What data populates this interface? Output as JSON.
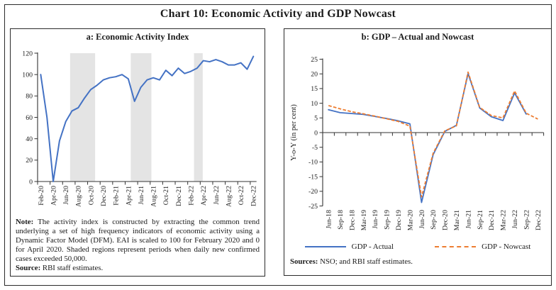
{
  "title": "Chart 10: Economic Activity and GDP Nowcast",
  "panel_a": {
    "note_label": "Note:",
    "note_text": "The activity index is constructed by extracting the common trend underlying a set of high frequency indicators of economic activity using a Dynamic Factor Model (DFM). EAI is scaled to 100 for February 2020 and 0 for April 2020. Shaded regions represent periods when daily new confirmed cases exceeded 50,000.",
    "source_label": "Source:",
    "source_text": "RBI staff estimates."
  },
  "panel_b": {
    "sources_label": "Sources:",
    "sources_text": "NSO; and RBI staff estimates."
  },
  "colors": {
    "actual_blue": "#4472C4",
    "nowcast_orange": "#ED7D31",
    "shade_gray": "#E4E4E4",
    "axis": "#333333"
  },
  "chart_data": [
    {
      "type": "line",
      "title": "a: Economic Activity Index",
      "x": [
        "Feb-20",
        "Mar-20",
        "Apr-20",
        "May-20",
        "Jun-20",
        "Jul-20",
        "Aug-20",
        "Sep-20",
        "Oct-20",
        "Nov-20",
        "Dec-20",
        "Jan-21",
        "Feb-21",
        "Mar-21",
        "Apr-21",
        "May-21",
        "Jun-21",
        "Jul-21",
        "Aug-21",
        "Sep-21",
        "Oct-21",
        "Nov-21",
        "Dec-21",
        "Jan-22",
        "Feb-22",
        "Mar-22",
        "Apr-22",
        "May-22",
        "Jun-22",
        "Jul-22",
        "Aug-22",
        "Sep-22",
        "Oct-22",
        "Nov-22",
        "Dec-22"
      ],
      "x_tick_interval": 2,
      "ylim": [
        0,
        120
      ],
      "yticks": [
        0,
        20,
        40,
        60,
        80,
        100,
        120
      ],
      "grid": false,
      "shade_color": "#E4E4E4",
      "shaded_regions": [
        {
          "start": 4.7,
          "end": 8.7
        },
        {
          "start": 14.4,
          "end": 17.7
        },
        {
          "start": 24.5,
          "end": 25.9
        }
      ],
      "series": [
        {
          "name": "Economic Activity Index",
          "color": "#4472C4",
          "style": "solid",
          "values": [
            100,
            60,
            0,
            38,
            56,
            66,
            69,
            78,
            86,
            90,
            95,
            97,
            98,
            100,
            96,
            75,
            88,
            95,
            97,
            95,
            104,
            99,
            106,
            101,
            103,
            106,
            113,
            112,
            114,
            112,
            109,
            109,
            111,
            105,
            117
          ]
        }
      ]
    },
    {
      "type": "line",
      "title": "b: GDP – Actual and Nowcast",
      "ylabel": "Y-o-Y (in per cent)",
      "x": [
        "Jun-18",
        "Sep-18",
        "Dec-18",
        "Mar-19",
        "Jun-19",
        "Sep-19",
        "Dec-19",
        "Mar-20",
        "Jun-20",
        "Sep-20",
        "Dec-20",
        "Mar-21",
        "Jun-21",
        "Sep-21",
        "Dec-21",
        "Mar-22",
        "Jun-22",
        "Sep-22",
        "Dec-22"
      ],
      "x_tick_interval": 1,
      "ylim": [
        -25,
        25
      ],
      "yticks": [
        -25,
        -20,
        -15,
        -10,
        -5,
        0,
        5,
        10,
        15,
        20,
        25
      ],
      "grid": false,
      "legend_position": "bottom",
      "series": [
        {
          "name": "GDP - Actual",
          "color": "#4472C4",
          "style": "solid",
          "values": [
            7.8,
            6.8,
            6.5,
            6.2,
            5.5,
            4.8,
            4.0,
            3.0,
            -23.8,
            -7.5,
            0.4,
            2.5,
            20.1,
            8.4,
            5.4,
            4.1,
            13.5,
            6.3,
            null
          ]
        },
        {
          "name": "GDP - Nowcast",
          "color": "#ED7D31",
          "style": "dashed",
          "values": [
            9.2,
            8.1,
            7.1,
            6.4,
            5.6,
            4.7,
            3.8,
            2.2,
            -21.9,
            -7.0,
            0.6,
            2.3,
            20.6,
            8.6,
            5.8,
            5.0,
            14.2,
            6.6,
            4.6
          ]
        }
      ]
    }
  ]
}
